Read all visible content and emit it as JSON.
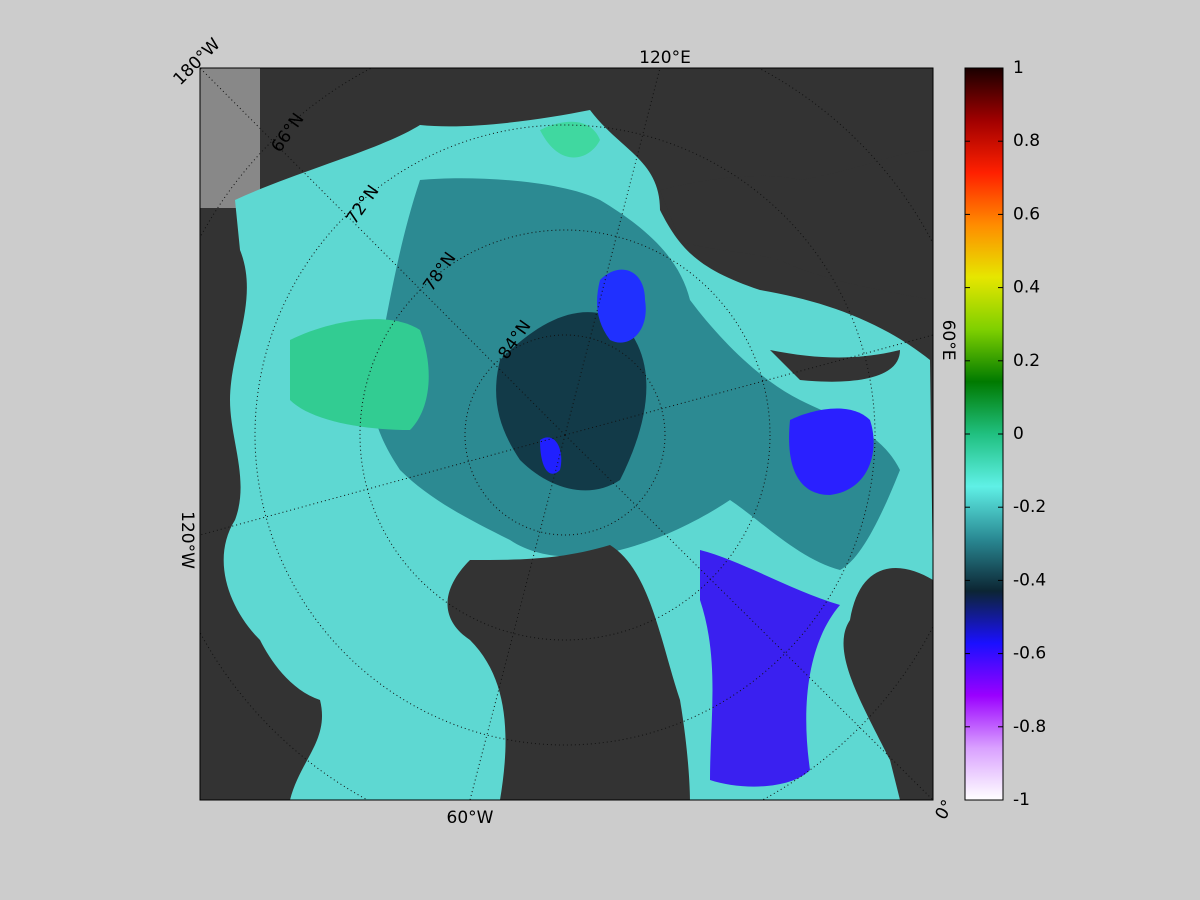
{
  "map": {
    "lon_labels": [
      "180°W",
      "120°E",
      "60°E",
      "0°",
      "60°W",
      "120°W"
    ],
    "lat_labels": [
      "66°N",
      "72°N",
      "78°N",
      "84°N"
    ]
  },
  "colorbar": {
    "range": [
      -1,
      1
    ],
    "ticks": [
      -1,
      -0.8,
      -0.6,
      -0.4,
      -0.2,
      0,
      0.2,
      0.4,
      0.6,
      0.8,
      1
    ],
    "colors": [
      "#ffffff",
      "#d9a0ff",
      "#9a00ff",
      "#1a10ff",
      "#0c2533",
      "#2a8a94",
      "#5ff0e6",
      "#20c080",
      "#007a00",
      "#7fd000",
      "#e6e600",
      "#ff8c00",
      "#ff2000",
      "#a00000",
      "#1a0000"
    ]
  }
}
